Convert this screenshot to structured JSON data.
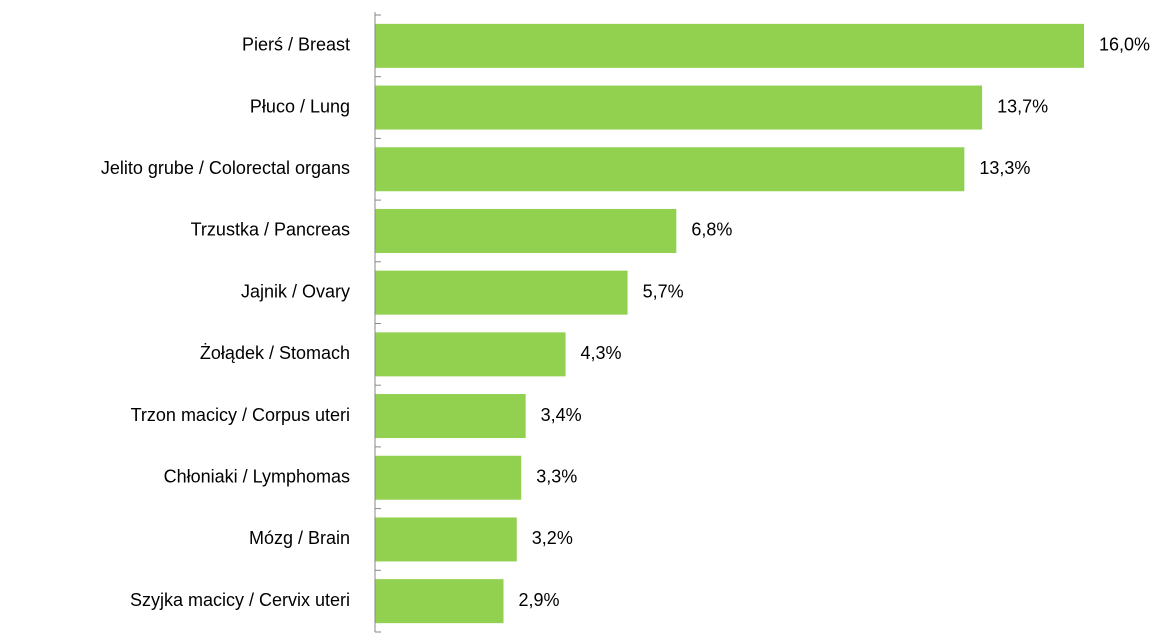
{
  "chart_data": {
    "type": "bar",
    "orientation": "horizontal",
    "color": "#92d050",
    "categories": [
      "Pierś / Breast",
      "Płuco / Lung",
      "Jelito grube / Colorectal organs",
      "Trzustka / Pancreas",
      "Jajnik / Ovary",
      "Żołądek / Stomach",
      "Trzon macicy / Corpus uteri",
      "Chłoniaki / Lymphomas",
      "Mózg / Brain",
      "Szyjka macicy / Cervix uteri"
    ],
    "values": [
      16.0,
      13.7,
      13.3,
      6.8,
      5.7,
      4.3,
      3.4,
      3.3,
      3.2,
      2.9
    ],
    "value_labels": [
      "16,0%",
      "13,7%",
      "13,3%",
      "6,8%",
      "5,7%",
      "4,3%",
      "3,4%",
      "3,3%",
      "3,2%",
      "2,9%"
    ]
  }
}
